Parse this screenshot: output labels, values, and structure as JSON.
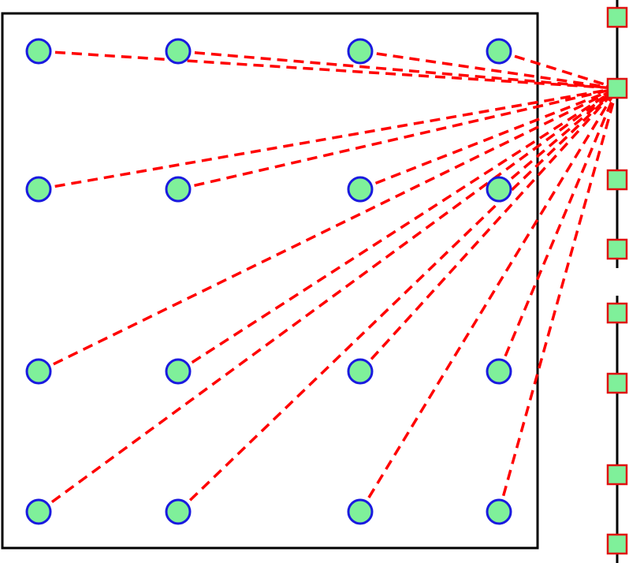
{
  "colors": {
    "background": "#ffffff",
    "frame_stroke": "#000000",
    "rail_stroke": "#000000",
    "node_fill": "#7ff09a",
    "node_stroke": "#1a1adf",
    "sensor_fill": "#7ff09a",
    "sensor_stroke": "#e01010",
    "link_stroke": "#ff0000"
  },
  "icons": {
    "node": "circle-node-icon",
    "sensor": "square-sensor-icon"
  },
  "grid": {
    "columns": 4,
    "rows": 4
  },
  "rail": {
    "segments": 2,
    "sensors_per_segment": 4,
    "active_sensor": {
      "segment": 0,
      "index": 1
    }
  }
}
